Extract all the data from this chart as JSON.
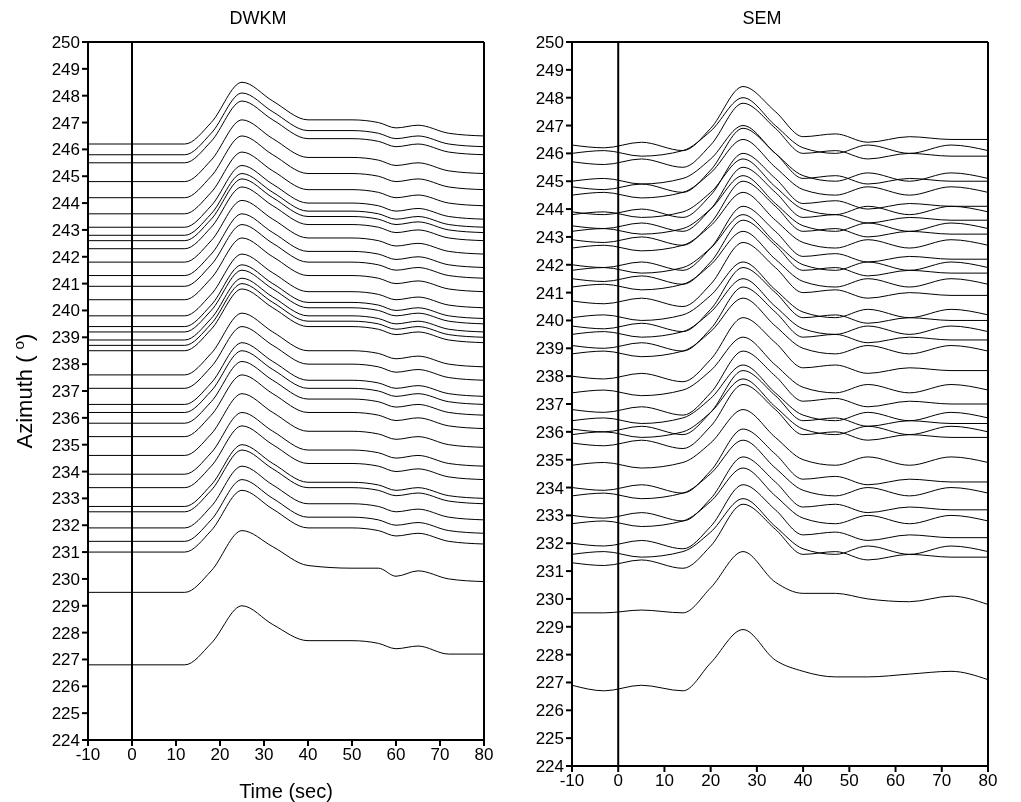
{
  "chart_data": [
    {
      "type": "line",
      "title": "DWKM",
      "xlabel": "Time (sec)",
      "ylabel": "Azimuth ( $^{o}$)",
      "marker": "none",
      "line_style": "solid",
      "grid": false,
      "legend": false,
      "x": [
        -10,
        12,
        18,
        25,
        32,
        40,
        50,
        56,
        60,
        65,
        72,
        80
      ],
      "xlim": [
        -10,
        80
      ],
      "xticks": [
        -10,
        0,
        10,
        20,
        30,
        40,
        50,
        60,
        70,
        80
      ],
      "ylim": [
        224,
        250
      ],
      "yticks": [
        224,
        225,
        226,
        227,
        228,
        229,
        230,
        231,
        232,
        233,
        234,
        235,
        236,
        237,
        238,
        239,
        240,
        241,
        242,
        243,
        244,
        245,
        246,
        247,
        248,
        249,
        250
      ],
      "ref_lines": [
        {
          "axis": "x",
          "value": 0,
          "color": "#000000"
        }
      ],
      "series": [
        {
          "color": "#000000",
          "values": [
            246.2,
            246.2,
            247.0,
            248.5,
            247.8,
            247.1,
            247.1,
            247.0,
            246.8,
            246.9,
            246.6,
            246.5
          ]
        },
        {
          "color": "#000000",
          "values": [
            245.8,
            245.8,
            246.6,
            248.1,
            247.4,
            246.7,
            246.7,
            246.6,
            246.4,
            246.5,
            246.2,
            246.1
          ]
        },
        {
          "color": "#000000",
          "values": [
            245.5,
            245.5,
            246.3,
            247.8,
            247.1,
            246.4,
            246.4,
            246.3,
            246.1,
            246.2,
            245.9,
            245.8
          ]
        },
        {
          "color": "#000000",
          "values": [
            244.8,
            244.8,
            245.6,
            247.1,
            246.4,
            245.7,
            245.7,
            245.6,
            245.4,
            245.5,
            245.2,
            245.1
          ]
        },
        {
          "color": "#000000",
          "values": [
            244.2,
            244.2,
            245.0,
            246.5,
            245.8,
            245.1,
            245.1,
            245.0,
            244.8,
            244.9,
            244.6,
            244.5
          ]
        },
        {
          "color": "#000000",
          "values": [
            243.6,
            243.6,
            244.4,
            245.9,
            245.2,
            244.5,
            244.5,
            244.4,
            244.2,
            244.3,
            244.0,
            243.9
          ]
        },
        {
          "color": "#000000",
          "values": [
            243.1,
            243.1,
            243.9,
            245.4,
            244.7,
            244.0,
            244.0,
            243.9,
            243.7,
            243.8,
            243.5,
            243.4
          ]
        },
        {
          "color": "#000000",
          "values": [
            242.8,
            242.8,
            243.6,
            245.1,
            244.4,
            243.7,
            243.7,
            243.6,
            243.4,
            243.5,
            243.2,
            243.1
          ]
        },
        {
          "color": "#000000",
          "values": [
            242.6,
            242.6,
            243.4,
            244.9,
            244.2,
            243.5,
            243.5,
            243.4,
            243.2,
            243.3,
            243.0,
            242.9
          ]
        },
        {
          "color": "#000000",
          "values": [
            242.3,
            242.3,
            243.1,
            244.6,
            243.9,
            243.2,
            243.2,
            243.1,
            242.9,
            243.0,
            242.7,
            242.6
          ]
        },
        {
          "color": "#000000",
          "values": [
            241.8,
            241.8,
            242.6,
            244.1,
            243.4,
            242.7,
            242.7,
            242.6,
            242.4,
            242.5,
            242.2,
            242.1
          ]
        },
        {
          "color": "#000000",
          "values": [
            241.3,
            241.3,
            242.1,
            243.6,
            242.9,
            242.2,
            242.2,
            242.1,
            241.9,
            242.0,
            241.7,
            241.6
          ]
        },
        {
          "color": "#000000",
          "values": [
            240.9,
            240.9,
            241.7,
            243.2,
            242.5,
            241.8,
            241.8,
            241.7,
            241.5,
            241.6,
            241.3,
            241.2
          ]
        },
        {
          "color": "#000000",
          "values": [
            240.4,
            240.4,
            241.2,
            242.7,
            242.0,
            241.3,
            241.3,
            241.2,
            241.0,
            241.1,
            240.8,
            240.7
          ]
        },
        {
          "color": "#000000",
          "values": [
            239.8,
            239.8,
            240.6,
            242.1,
            241.4,
            240.7,
            240.7,
            240.6,
            240.4,
            240.5,
            240.2,
            240.1
          ]
        },
        {
          "color": "#000000",
          "values": [
            239.4,
            239.4,
            240.2,
            241.7,
            241.0,
            240.3,
            240.3,
            240.2,
            240.0,
            240.1,
            239.8,
            239.7
          ]
        },
        {
          "color": "#000000",
          "values": [
            239.2,
            239.2,
            240.0,
            241.5,
            240.8,
            240.1,
            240.1,
            240.0,
            239.8,
            239.9,
            239.6,
            239.5
          ]
        },
        {
          "color": "#000000",
          "values": [
            238.9,
            238.9,
            239.7,
            241.2,
            240.5,
            239.8,
            239.8,
            239.7,
            239.5,
            239.6,
            239.3,
            239.2
          ]
        },
        {
          "color": "#000000",
          "values": [
            238.7,
            238.7,
            239.5,
            241.0,
            240.3,
            239.6,
            239.6,
            239.5,
            239.3,
            239.4,
            239.1,
            239.0
          ]
        },
        {
          "color": "#000000",
          "values": [
            238.5,
            238.5,
            239.3,
            240.8,
            240.1,
            239.4,
            239.4,
            239.3,
            239.1,
            239.2,
            238.9,
            238.8
          ]
        },
        {
          "color": "#000000",
          "values": [
            237.6,
            237.6,
            238.4,
            239.9,
            239.2,
            238.5,
            238.5,
            238.4,
            238.2,
            238.3,
            238.0,
            237.9
          ]
        },
        {
          "color": "#000000",
          "values": [
            237.1,
            237.1,
            237.9,
            239.4,
            238.7,
            238.0,
            238.0,
            237.9,
            237.7,
            237.8,
            237.5,
            237.4
          ]
        },
        {
          "color": "#000000",
          "values": [
            236.5,
            236.5,
            237.3,
            238.8,
            238.1,
            237.4,
            237.4,
            237.3,
            237.1,
            237.2,
            236.9,
            236.8
          ]
        },
        {
          "color": "#000000",
          "values": [
            236.2,
            236.2,
            237.0,
            238.5,
            237.8,
            237.1,
            237.1,
            237.0,
            236.8,
            236.9,
            236.6,
            236.5
          ]
        },
        {
          "color": "#000000",
          "values": [
            235.8,
            235.8,
            236.6,
            238.1,
            237.4,
            236.7,
            236.7,
            236.6,
            236.4,
            236.5,
            236.2,
            236.1
          ]
        },
        {
          "color": "#000000",
          "values": [
            235.3,
            235.3,
            236.1,
            237.6,
            236.9,
            236.2,
            236.2,
            236.1,
            235.9,
            236.0,
            235.7,
            235.6
          ]
        },
        {
          "color": "#000000",
          "values": [
            234.6,
            234.6,
            235.4,
            236.9,
            236.2,
            235.5,
            235.5,
            235.4,
            235.2,
            235.3,
            235.0,
            234.9
          ]
        },
        {
          "color": "#000000",
          "values": [
            233.9,
            233.9,
            234.7,
            236.2,
            235.5,
            234.8,
            234.8,
            234.7,
            234.5,
            234.6,
            234.3,
            234.2
          ]
        },
        {
          "color": "#000000",
          "values": [
            233.4,
            233.4,
            234.2,
            235.7,
            235.0,
            234.3,
            234.3,
            234.2,
            234.0,
            234.1,
            233.8,
            233.7
          ]
        },
        {
          "color": "#000000",
          "values": [
            232.7,
            232.7,
            233.5,
            235.0,
            234.3,
            233.6,
            233.6,
            233.5,
            233.3,
            233.4,
            233.1,
            233.0
          ]
        },
        {
          "color": "#000000",
          "values": [
            232.5,
            232.5,
            233.3,
            234.8,
            234.1,
            233.4,
            233.4,
            233.3,
            233.1,
            233.2,
            232.9,
            232.8
          ]
        },
        {
          "color": "#000000",
          "values": [
            231.9,
            231.9,
            232.7,
            234.2,
            233.5,
            232.8,
            232.8,
            232.7,
            232.5,
            232.6,
            232.3,
            232.2
          ]
        },
        {
          "color": "#000000",
          "values": [
            231.4,
            231.4,
            232.2,
            233.7,
            233.0,
            232.3,
            232.3,
            232.2,
            232.0,
            232.1,
            231.8,
            231.7
          ]
        },
        {
          "color": "#000000",
          "values": [
            231.0,
            231.0,
            231.8,
            233.3,
            232.6,
            231.9,
            231.9,
            231.8,
            231.6,
            231.7,
            231.4,
            231.3
          ]
        },
        {
          "color": "#000000",
          "values": [
            229.5,
            229.5,
            230.3,
            231.8,
            231.2,
            230.5,
            230.4,
            230.4,
            230.1,
            230.3,
            230.0,
            229.9
          ]
        },
        {
          "color": "#000000",
          "values": [
            226.8,
            226.8,
            227.6,
            229.0,
            228.3,
            227.7,
            227.7,
            227.6,
            227.4,
            227.5,
            227.2,
            227.2
          ]
        }
      ]
    },
    {
      "type": "line",
      "title": "SEM",
      "marker": "none",
      "line_style": "solid",
      "grid": false,
      "legend": false,
      "x": [
        -10,
        -3,
        5,
        14,
        20,
        27,
        34,
        40,
        47,
        54,
        63,
        72,
        80
      ],
      "xlim": [
        -10,
        80
      ],
      "xticks": [
        -10,
        0,
        10,
        20,
        30,
        40,
        50,
        60,
        70,
        80
      ],
      "ylim": [
        224,
        250
      ],
      "yticks": [
        224,
        225,
        226,
        227,
        228,
        229,
        230,
        231,
        232,
        233,
        234,
        235,
        236,
        237,
        238,
        239,
        240,
        241,
        242,
        243,
        244,
        245,
        246,
        247,
        248,
        249,
        250
      ],
      "ref_lines": [
        {
          "axis": "x",
          "value": 0,
          "color": "#000000"
        }
      ],
      "series": [
        {
          "color": "#000000",
          "values": [
            246.3,
            246.2,
            246.4,
            246.1,
            246.9,
            248.4,
            247.5,
            246.6,
            246.7,
            246.4,
            246.6,
            246.5,
            246.5
          ]
        },
        {
          "color": "#000000",
          "values": [
            246.0,
            246.1,
            245.9,
            246.1,
            246.8,
            248.0,
            247.0,
            246.2,
            246.0,
            246.3,
            246.0,
            246.3,
            246.1
          ]
        },
        {
          "color": "#000000",
          "values": [
            245.7,
            245.6,
            245.8,
            245.5,
            246.3,
            247.8,
            246.9,
            246.0,
            246.1,
            245.8,
            246.0,
            245.9,
            245.9
          ]
        },
        {
          "color": "#000000",
          "values": [
            245.0,
            245.1,
            244.9,
            245.1,
            245.8,
            247.0,
            246.0,
            245.2,
            245.0,
            245.3,
            245.0,
            245.3,
            245.1
          ]
        },
        {
          "color": "#000000",
          "values": [
            244.8,
            244.7,
            244.9,
            244.6,
            245.4,
            246.9,
            246.0,
            245.1,
            245.2,
            244.9,
            245.1,
            245.0,
            245.0
          ]
        },
        {
          "color": "#000000",
          "values": [
            244.5,
            244.6,
            244.4,
            244.6,
            245.3,
            246.5,
            245.5,
            244.7,
            244.5,
            244.8,
            244.5,
            244.8,
            244.6
          ]
        },
        {
          "color": "#000000",
          "values": [
            243.9,
            243.8,
            244.0,
            243.7,
            244.5,
            246.0,
            245.1,
            244.2,
            244.3,
            244.0,
            244.2,
            244.1,
            244.1
          ]
        },
        {
          "color": "#000000",
          "values": [
            243.8,
            243.9,
            243.7,
            243.9,
            244.6,
            245.8,
            244.8,
            244.0,
            243.8,
            244.1,
            243.8,
            244.1,
            243.9
          ]
        },
        {
          "color": "#000000",
          "values": [
            243.4,
            243.3,
            243.5,
            243.2,
            244.0,
            245.5,
            244.6,
            243.7,
            243.8,
            243.5,
            243.7,
            243.6,
            243.6
          ]
        },
        {
          "color": "#000000",
          "values": [
            243.2,
            243.3,
            243.1,
            243.3,
            244.0,
            245.2,
            244.2,
            243.4,
            243.2,
            243.5,
            243.2,
            243.5,
            243.3
          ]
        },
        {
          "color": "#000000",
          "values": [
            242.9,
            242.8,
            243.0,
            242.7,
            243.5,
            245.0,
            244.1,
            243.2,
            243.3,
            243.0,
            243.2,
            243.1,
            243.1
          ]
        },
        {
          "color": "#000000",
          "values": [
            242.6,
            242.7,
            242.5,
            242.7,
            243.4,
            244.6,
            243.6,
            242.8,
            242.6,
            242.9,
            242.6,
            242.9,
            242.7
          ]
        },
        {
          "color": "#000000",
          "values": [
            242.0,
            241.9,
            242.1,
            241.8,
            242.6,
            244.1,
            243.2,
            242.3,
            242.4,
            242.1,
            242.3,
            242.2,
            242.2
          ]
        },
        {
          "color": "#000000",
          "values": [
            241.8,
            241.9,
            241.7,
            241.9,
            242.6,
            243.8,
            242.8,
            242.0,
            241.8,
            242.1,
            241.8,
            242.1,
            241.9
          ]
        },
        {
          "color": "#000000",
          "values": [
            241.5,
            241.4,
            241.6,
            241.3,
            242.1,
            243.6,
            242.7,
            241.8,
            241.9,
            241.6,
            241.8,
            241.7,
            241.7
          ]
        },
        {
          "color": "#000000",
          "values": [
            241.2,
            241.3,
            241.1,
            241.3,
            242.0,
            243.2,
            242.2,
            241.4,
            241.2,
            241.5,
            241.2,
            241.5,
            241.3
          ]
        },
        {
          "color": "#000000",
          "values": [
            240.7,
            240.6,
            240.8,
            240.5,
            241.3,
            242.8,
            241.9,
            241.0,
            241.1,
            240.8,
            241.0,
            240.9,
            240.9
          ]
        },
        {
          "color": "#000000",
          "values": [
            240.1,
            240.2,
            240.0,
            240.2,
            240.9,
            242.1,
            241.1,
            240.3,
            240.1,
            240.4,
            240.1,
            240.4,
            240.2
          ]
        },
        {
          "color": "#000000",
          "values": [
            239.8,
            239.7,
            239.9,
            239.6,
            240.4,
            241.9,
            241.0,
            240.1,
            240.2,
            239.9,
            240.1,
            240.0,
            240.0
          ]
        },
        {
          "color": "#000000",
          "values": [
            239.5,
            239.6,
            239.4,
            239.6,
            240.3,
            241.5,
            240.5,
            239.7,
            239.5,
            239.8,
            239.5,
            239.8,
            239.6
          ]
        },
        {
          "color": "#000000",
          "values": [
            239.1,
            239.0,
            239.2,
            238.9,
            239.7,
            241.2,
            240.3,
            239.4,
            239.5,
            239.2,
            239.4,
            239.3,
            239.3
          ]
        },
        {
          "color": "#000000",
          "values": [
            238.8,
            238.9,
            238.7,
            238.9,
            239.6,
            240.8,
            239.8,
            239.0,
            238.8,
            239.1,
            238.8,
            239.1,
            238.9
          ]
        },
        {
          "color": "#000000",
          "values": [
            238.0,
            237.9,
            238.1,
            237.8,
            238.6,
            240.1,
            239.2,
            238.3,
            238.4,
            238.1,
            238.3,
            238.2,
            238.2
          ]
        },
        {
          "color": "#000000",
          "values": [
            237.4,
            237.5,
            237.3,
            237.5,
            238.2,
            239.4,
            238.4,
            237.6,
            237.4,
            237.7,
            237.4,
            237.7,
            237.5
          ]
        },
        {
          "color": "#000000",
          "values": [
            236.8,
            236.7,
            236.9,
            236.6,
            237.4,
            238.9,
            238.0,
            237.1,
            237.2,
            236.9,
            237.1,
            237.0,
            237.0
          ]
        },
        {
          "color": "#000000",
          "values": [
            236.4,
            236.5,
            236.3,
            236.5,
            237.2,
            238.4,
            237.4,
            236.6,
            236.4,
            236.7,
            236.4,
            236.7,
            236.5
          ]
        },
        {
          "color": "#000000",
          "values": [
            236.1,
            236.0,
            236.2,
            235.9,
            236.7,
            238.2,
            237.3,
            236.4,
            236.5,
            236.2,
            236.4,
            236.3,
            236.3
          ]
        },
        {
          "color": "#000000",
          "values": [
            235.9,
            236.0,
            235.8,
            236.0,
            236.7,
            237.9,
            236.9,
            236.1,
            235.9,
            236.2,
            235.9,
            236.2,
            236.0
          ]
        },
        {
          "color": "#000000",
          "values": [
            235.6,
            235.5,
            235.7,
            235.4,
            236.2,
            237.7,
            236.8,
            235.9,
            236.0,
            235.7,
            235.9,
            235.8,
            235.8
          ]
        },
        {
          "color": "#000000",
          "values": [
            234.8,
            234.9,
            234.7,
            234.9,
            235.6,
            236.8,
            235.8,
            235.0,
            234.8,
            235.1,
            234.8,
            235.1,
            234.9
          ]
        },
        {
          "color": "#000000",
          "values": [
            234.0,
            233.9,
            234.1,
            233.8,
            234.6,
            236.1,
            235.2,
            234.3,
            234.4,
            234.1,
            234.3,
            234.2,
            234.2
          ]
        },
        {
          "color": "#000000",
          "values": [
            233.7,
            233.8,
            233.6,
            233.8,
            234.5,
            235.7,
            234.7,
            233.9,
            233.7,
            234.0,
            233.7,
            234.0,
            233.8
          ]
        },
        {
          "color": "#000000",
          "values": [
            233.0,
            232.9,
            233.1,
            232.8,
            233.6,
            235.1,
            234.2,
            233.3,
            233.4,
            233.1,
            233.3,
            233.2,
            233.2
          ]
        },
        {
          "color": "#000000",
          "values": [
            232.7,
            232.8,
            232.6,
            232.8,
            233.5,
            234.7,
            233.7,
            232.9,
            232.7,
            233.0,
            232.7,
            233.0,
            232.8
          ]
        },
        {
          "color": "#000000",
          "values": [
            232.0,
            231.9,
            232.1,
            231.8,
            232.6,
            234.1,
            233.2,
            232.3,
            232.4,
            232.1,
            232.3,
            232.2,
            232.2
          ]
        },
        {
          "color": "#000000",
          "values": [
            231.6,
            231.7,
            231.5,
            231.7,
            232.4,
            233.6,
            232.6,
            231.8,
            231.6,
            231.9,
            231.6,
            231.9,
            231.7
          ]
        },
        {
          "color": "#000000",
          "values": [
            231.3,
            231.2,
            231.4,
            231.1,
            231.9,
            233.4,
            232.5,
            231.6,
            231.7,
            231.4,
            231.6,
            231.5,
            231.5
          ]
        },
        {
          "color": "#000000",
          "values": [
            229.5,
            229.5,
            229.6,
            229.5,
            230.4,
            231.7,
            230.6,
            230.2,
            230.2,
            230.0,
            229.9,
            230.1,
            229.8
          ]
        },
        {
          "color": "#000000",
          "values": [
            226.9,
            226.7,
            226.9,
            226.7,
            227.7,
            228.9,
            227.8,
            227.4,
            227.2,
            227.2,
            227.3,
            227.4,
            227.1
          ]
        }
      ]
    }
  ]
}
